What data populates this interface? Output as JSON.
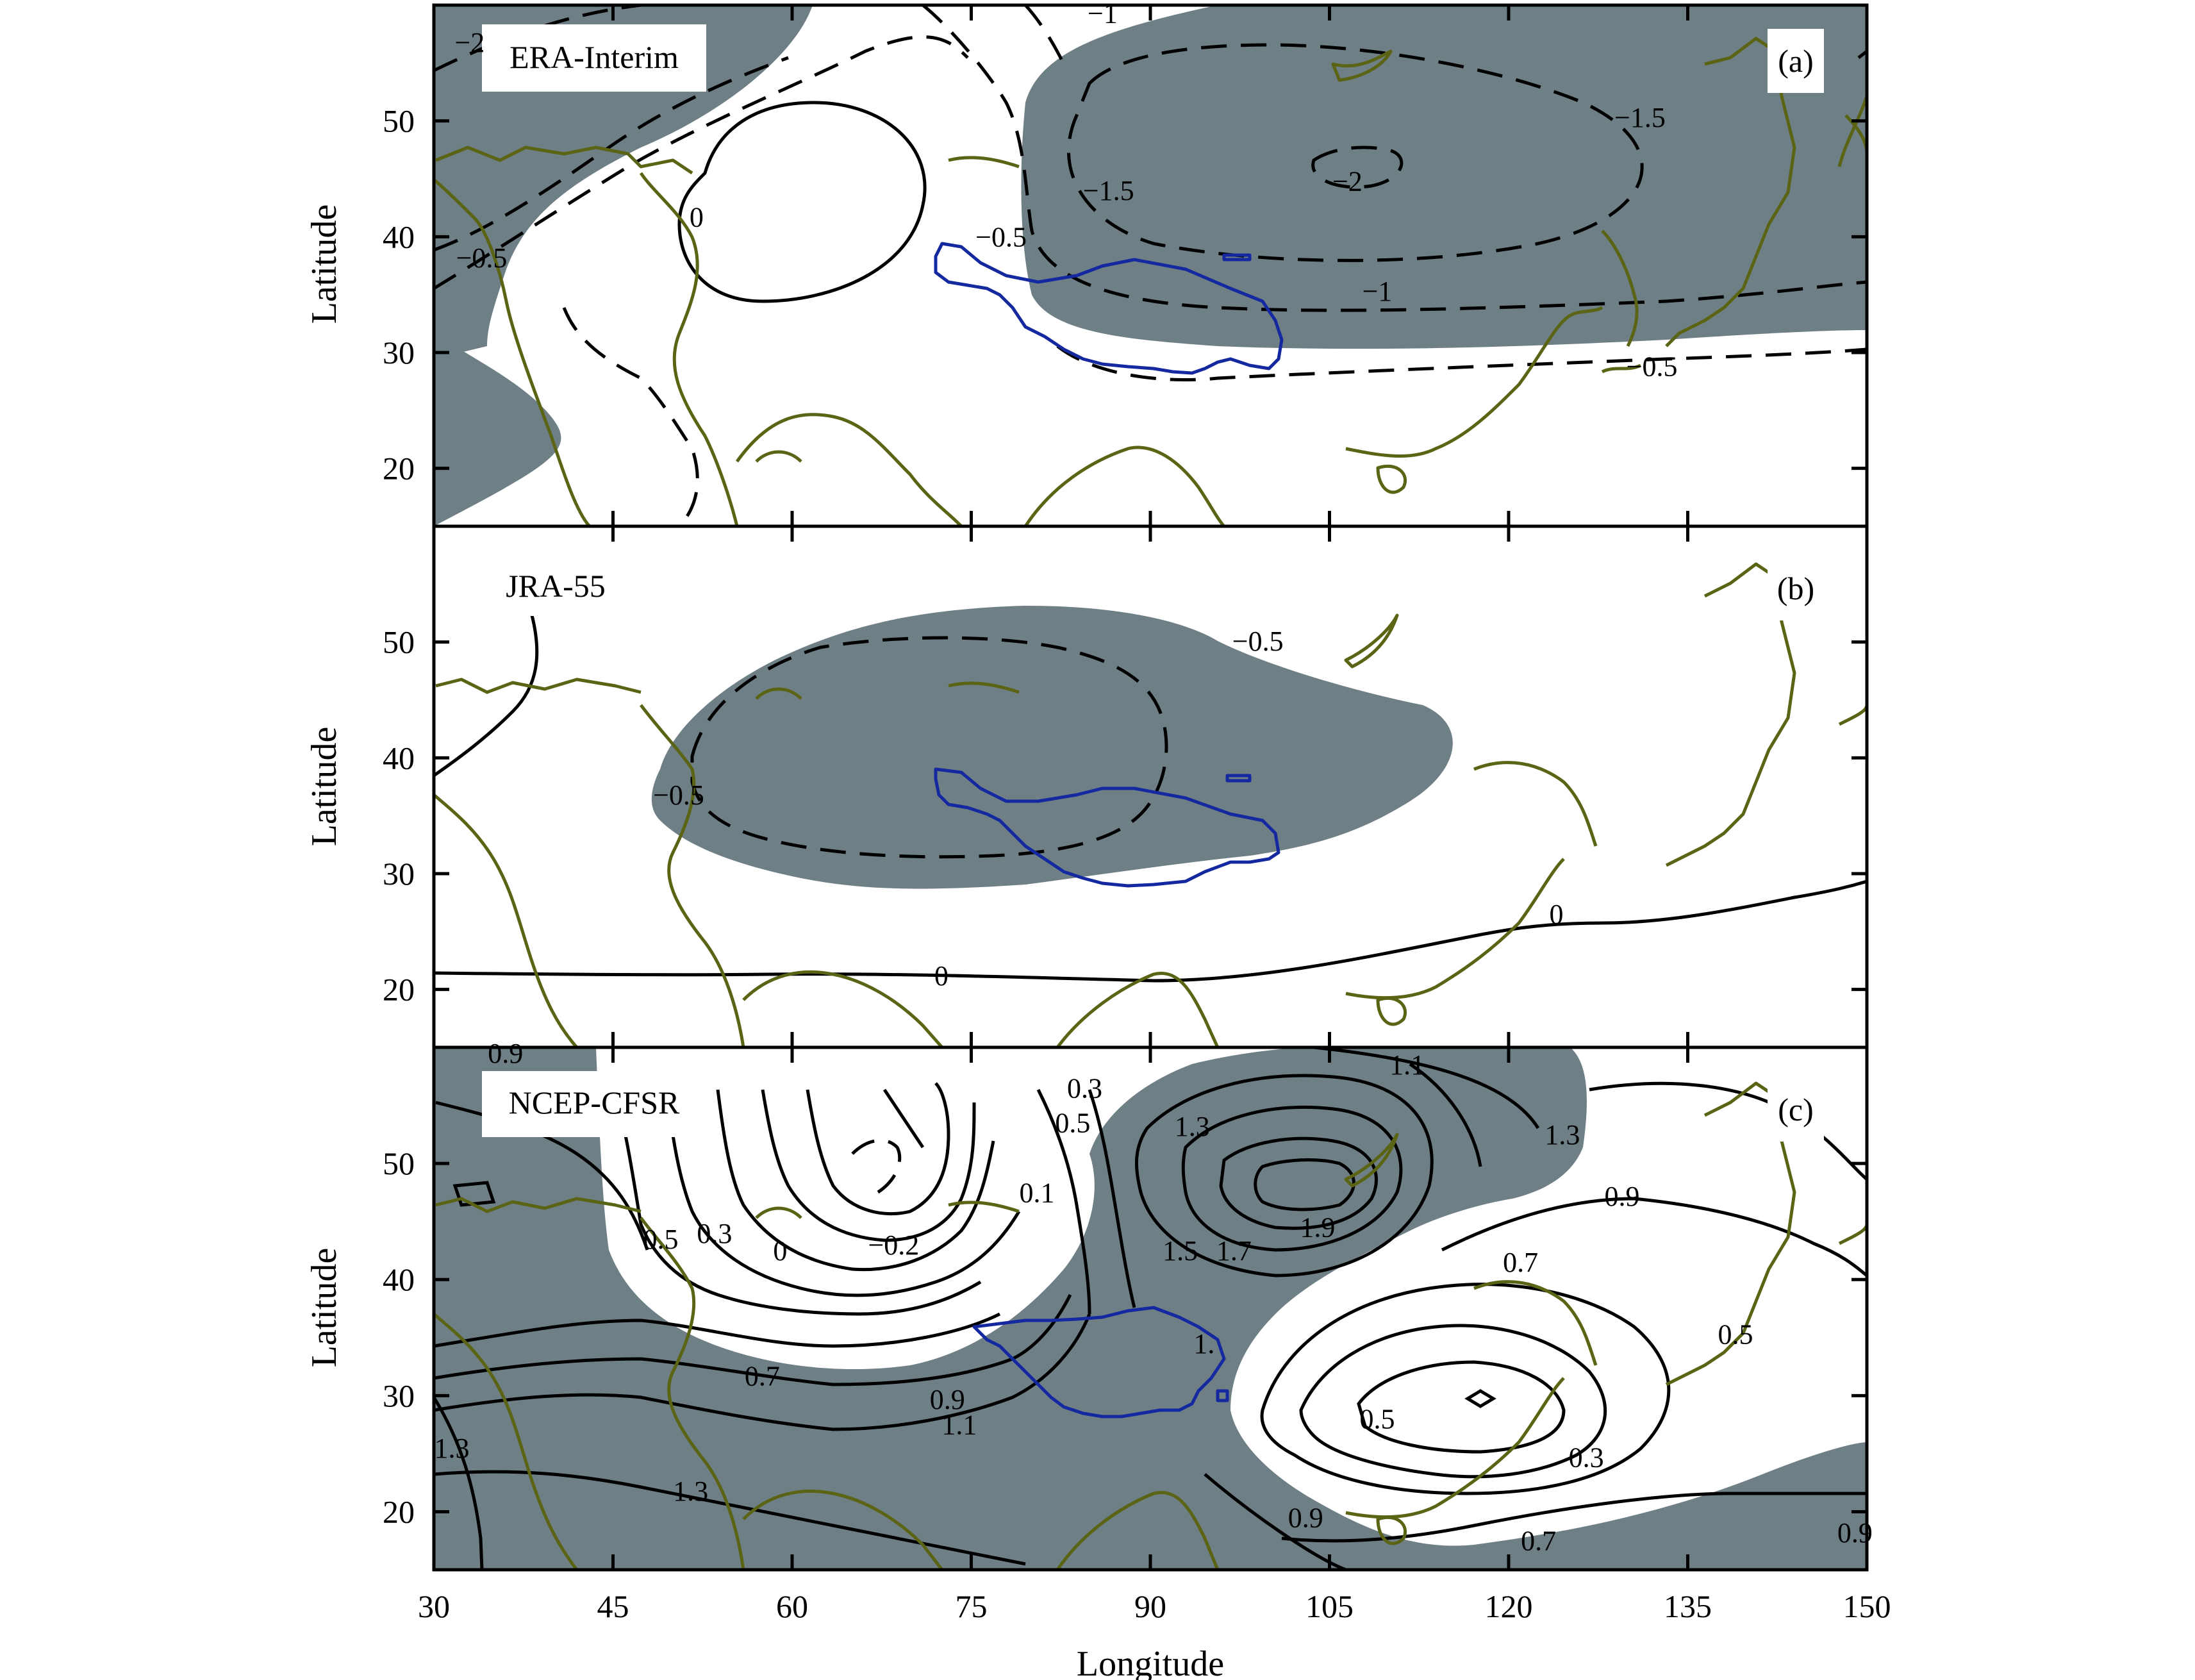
{
  "chart_data": {
    "type": "contour-map",
    "xlabel": "Longitude",
    "ylabel": "Latitude",
    "xlim": [
      30,
      150
    ],
    "ylim": [
      15,
      60
    ],
    "xticks": [
      30,
      45,
      60,
      75,
      90,
      105,
      120,
      135,
      150
    ],
    "yticks": [
      20,
      30,
      40,
      50
    ],
    "panels": [
      {
        "id": "a",
        "letter": "(a)",
        "dataset": "ERA-Interim",
        "contour_labels": [
          {
            "text": "-2",
            "lon": 33,
            "lat": 56.8
          },
          {
            "text": "-1",
            "lon": 86,
            "lat": 59.3
          },
          {
            "text": "0",
            "lon": 52,
            "lat": 41.7
          },
          {
            "text": "-0.5",
            "lon": 34,
            "lat": 38.2
          },
          {
            "text": "-0.5",
            "lon": 77.5,
            "lat": 40
          },
          {
            "text": "-1.5",
            "lon": 86.5,
            "lat": 44
          },
          {
            "text": "-1.5",
            "lon": 131,
            "lat": 50.3
          },
          {
            "text": "-2",
            "lon": 106.5,
            "lat": 44.8
          },
          {
            "text": "-1",
            "lon": 109,
            "lat": 35.3
          },
          {
            "text": "-0.5",
            "lon": 132,
            "lat": 28.8
          }
        ]
      },
      {
        "id": "b",
        "letter": "(b)",
        "dataset": "JRA-55",
        "contour_labels": [
          {
            "text": "-0.5",
            "lon": 99,
            "lat": 50.1
          },
          {
            "text": "-0.5",
            "lon": 50.5,
            "lat": 36.8
          },
          {
            "text": "0",
            "lon": 124,
            "lat": 26.5
          },
          {
            "text": "0",
            "lon": 72.5,
            "lat": 21.2
          }
        ]
      },
      {
        "id": "c",
        "letter": "(c)",
        "dataset": "NCEP-CFSR",
        "contour_labels": [
          {
            "text": "0.9",
            "lon": 36,
            "lat": 59.5
          },
          {
            "text": "0.3",
            "lon": 84.5,
            "lat": 56.5
          },
          {
            "text": "0.5",
            "lon": 83.5,
            "lat": 53.5
          },
          {
            "text": "0.1",
            "lon": 80.5,
            "lat": 47.5
          },
          {
            "text": "1.3",
            "lon": 93.5,
            "lat": 53.2
          },
          {
            "text": "1.1",
            "lon": 111.5,
            "lat": 58.5
          },
          {
            "text": "1.3",
            "lon": 124.5,
            "lat": 52.5
          },
          {
            "text": "0.9",
            "lon": 129.5,
            "lat": 47.2
          },
          {
            "text": "1.9",
            "lon": 104,
            "lat": 44.5
          },
          {
            "text": "1.7",
            "lon": 97,
            "lat": 42.5
          },
          {
            "text": "1.5",
            "lon": 92.5,
            "lat": 42.5
          },
          {
            "text": "-0.2",
            "lon": 68.5,
            "lat": 43
          },
          {
            "text": "0",
            "lon": 59,
            "lat": 42.5
          },
          {
            "text": "0.3",
            "lon": 53.5,
            "lat": 44
          },
          {
            "text": "0.5",
            "lon": 49,
            "lat": 43.5
          },
          {
            "text": "0.7",
            "lon": 121,
            "lat": 41.5
          },
          {
            "text": "0.7",
            "lon": 57.5,
            "lat": 31.7
          },
          {
            "text": "0.9",
            "lon": 73,
            "lat": 29.7
          },
          {
            "text": "1.1",
            "lon": 74,
            "lat": 27.5
          },
          {
            "text": "1.",
            "lon": 94.5,
            "lat": 34.5
          },
          {
            "text": "0.5",
            "lon": 139,
            "lat": 35.3
          },
          {
            "text": "0.5",
            "lon": 109,
            "lat": 28
          },
          {
            "text": "0.3",
            "lon": 126.5,
            "lat": 24.7
          },
          {
            "text": "1.3",
            "lon": 51.5,
            "lat": 21.8
          },
          {
            "text": "0.9",
            "lon": 103,
            "lat": 19.5
          },
          {
            "text": "0.7",
            "lon": 122.5,
            "lat": 17.5
          },
          {
            "text": "0.9",
            "lon": 149,
            "lat": 18.2
          },
          {
            "text": "1.3",
            "lon": 31.5,
            "lat": 25.5
          }
        ]
      }
    ]
  }
}
